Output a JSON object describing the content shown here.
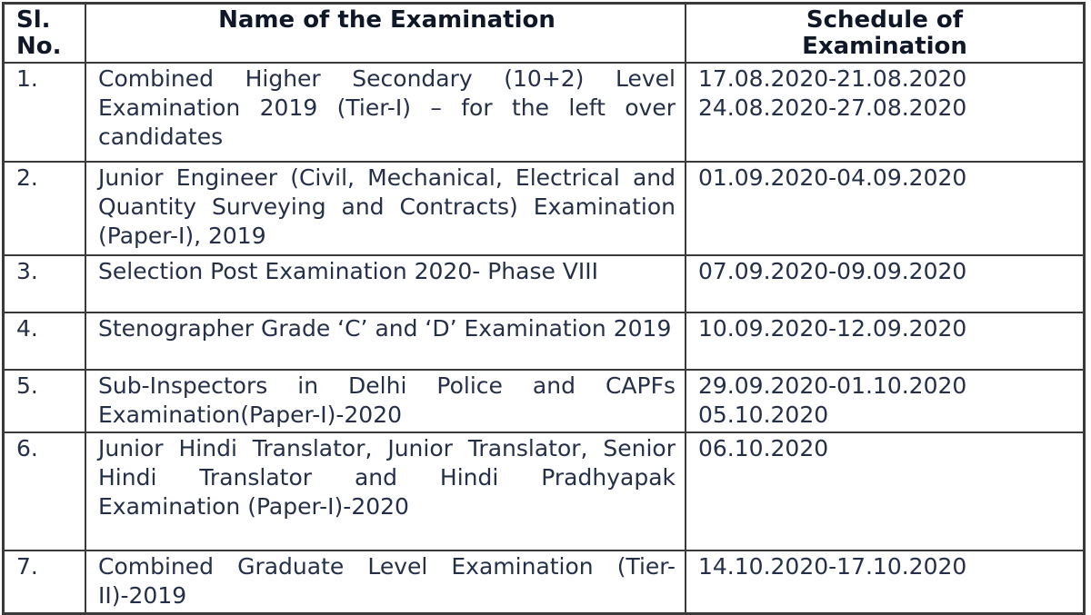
{
  "table": {
    "header": {
      "sl_no": "Sl. No.",
      "name": "Name of the Examination",
      "schedule": "Schedule of Examination"
    },
    "rows": [
      {
        "no": "1.",
        "name": "Combined Higher Secondary (10+2) Level Examination 2019 (Tier-I) – for the left over candidates",
        "schedule": [
          "17.08.2020-21.08.2020",
          "24.08.2020-27.08.2020"
        ]
      },
      {
        "no": "2.",
        "name": "Junior Engineer (Civil, Mechanical, Electrical and Quantity Surveying and Contracts) Examination (Paper-I), 2019",
        "schedule": [
          "01.09.2020-04.09.2020"
        ]
      },
      {
        "no": "3.",
        "name": "Selection Post Examination 2020- Phase VIII",
        "schedule": [
          "07.09.2020-09.09.2020"
        ]
      },
      {
        "no": "4.",
        "name": "Stenographer Grade ‘C’ and ‘D’ Examination 2019",
        "schedule": [
          "10.09.2020-12.09.2020"
        ]
      },
      {
        "no": "5.",
        "name": "Sub-Inspectors in Delhi Police and CAPFs Examination(Paper-I)-2020",
        "schedule": [
          "29.09.2020-01.10.2020",
          "05.10.2020"
        ]
      },
      {
        "no": "6.",
        "name": "Junior Hindi Translator, Junior Translator, Senior Hindi Translator and Hindi Pradhyapak Examination (Paper-I)-2020",
        "schedule": [
          "06.10.2020"
        ]
      },
      {
        "no": "7.",
        "name": "Combined Graduate Level Examination (Tier-II)-2019",
        "schedule": [
          "14.10.2020-17.10.2020"
        ]
      }
    ],
    "colors": {
      "text": "#253048",
      "header_text": "#101828",
      "border": "#3a3a3a",
      "background": "#ffffff"
    }
  }
}
